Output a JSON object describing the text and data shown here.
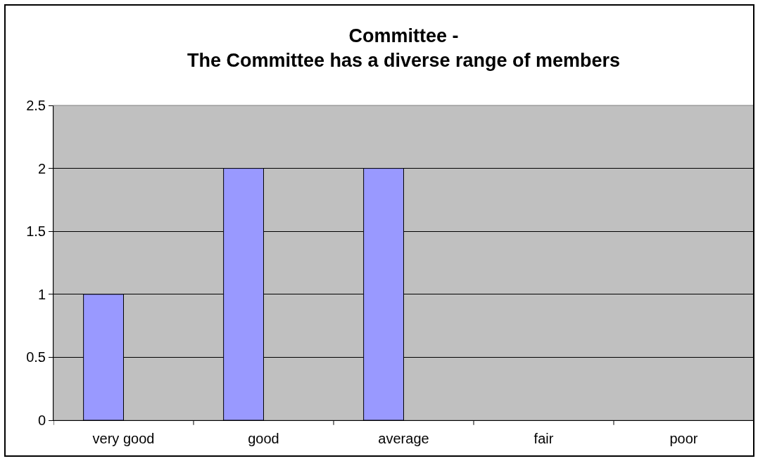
{
  "chart_data": {
    "type": "bar",
    "title": "Committee -\nThe Committee has a diverse range of members",
    "categories": [
      "very good",
      "good",
      "average",
      "fair",
      "poor"
    ],
    "values": [
      1,
      2,
      2,
      0,
      0
    ],
    "color": "#9999ff",
    "ylim": [
      0,
      2.5
    ],
    "yticks": [
      0,
      0.5,
      1,
      1.5,
      2,
      2.5
    ],
    "grid": "y"
  }
}
